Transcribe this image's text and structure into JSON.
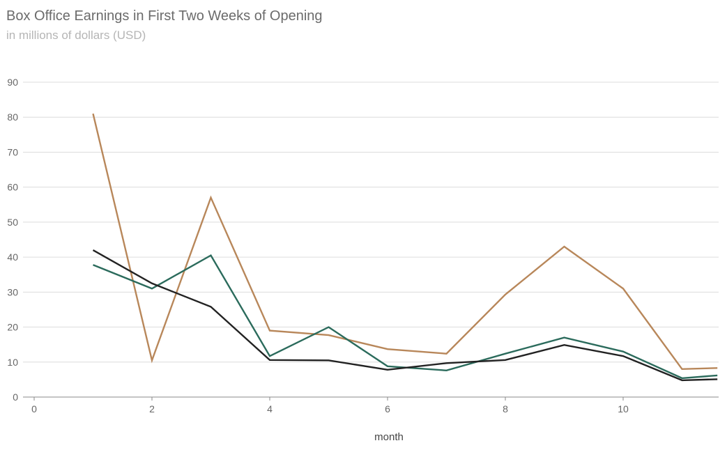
{
  "chart_data": {
    "type": "line",
    "title": "Box Office Earnings in First Two Weeks of Opening",
    "subtitle": "in millions of dollars (USD)",
    "xlabel": "month",
    "ylabel": "",
    "xlim": [
      0,
      11.6
    ],
    "ylim": [
      0,
      90
    ],
    "xticks": [
      0,
      2,
      4,
      6,
      8,
      10
    ],
    "yticks": [
      0,
      10,
      20,
      30,
      40,
      50,
      60,
      70,
      80,
      90
    ],
    "grid": true,
    "x": [
      1,
      2,
      3,
      4,
      5,
      6,
      7,
      8,
      9,
      10,
      11,
      11.6
    ],
    "series": [
      {
        "color": "#b8875a",
        "values": [
          81,
          10.5,
          57,
          19,
          17.7,
          13.7,
          12.4,
          29.3,
          43,
          31,
          8,
          8.3
        ]
      },
      {
        "color": "#2b6b5c",
        "values": [
          37.8,
          31,
          40.5,
          11.7,
          20,
          8.8,
          7.6,
          12.4,
          17,
          13,
          5.4,
          6.2
        ]
      },
      {
        "color": "#222222",
        "values": [
          42,
          32.5,
          25.8,
          10.6,
          10.5,
          7.8,
          9.7,
          10.6,
          14.9,
          11.7,
          4.8,
          5.1
        ]
      }
    ]
  }
}
